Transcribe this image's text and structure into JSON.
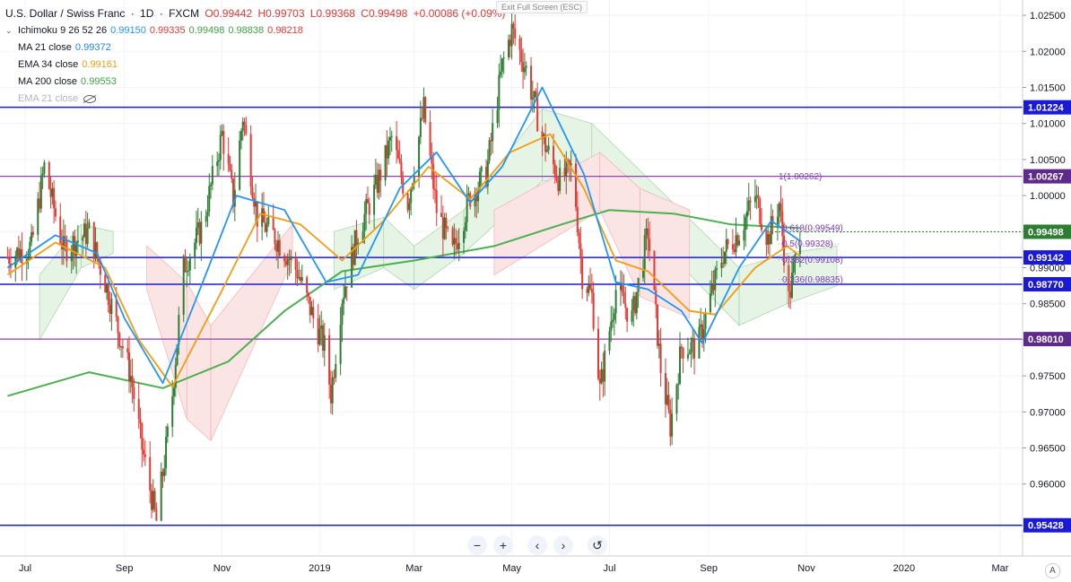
{
  "header": {
    "symbol": "U.S. Dollar / Swiss Franc",
    "sep1": "·",
    "interval": "1D",
    "sep2": "·",
    "source": "FXCM",
    "open": "O0.99442",
    "high": "H0.99703",
    "low": "L0.99368",
    "close": "C0.99498",
    "change": "+0.00086 (+0.09%)"
  },
  "exit_fullscreen_label": "Exit Full Screen (ESC)",
  "indicators": [
    {
      "label": "Ichimoku 9 26 52 26",
      "values": [
        {
          "text": "0.99150",
          "color": "#2196f3"
        },
        {
          "text": "0.99335",
          "color": "#e53935"
        },
        {
          "text": "0.99498",
          "color": "#43a047"
        },
        {
          "text": "0.98838",
          "color": "#43a047"
        },
        {
          "text": "0.98218",
          "color": "#e53935"
        }
      ]
    },
    {
      "label": "MA 21 close",
      "values": [
        {
          "text": "0.99372",
          "color": "#1e88e5"
        }
      ]
    },
    {
      "label": "EMA 34 close",
      "values": [
        {
          "text": "0.99161",
          "color": "#f39c12"
        }
      ]
    },
    {
      "label": "MA 200 close",
      "values": [
        {
          "text": "0.99553",
          "color": "#43a047"
        }
      ]
    },
    {
      "label": "EMA 21 close",
      "values": [],
      "hidden": true
    }
  ],
  "nav_buttons": [
    "−",
    "+",
    "‹",
    "›",
    "↺"
  ],
  "auto_label": "A",
  "colors": {
    "up": "#2e7d32",
    "down": "#e53935",
    "ma21": "#2196f3",
    "ema34": "#f39c12",
    "ma200": "#4caf50",
    "hline_blue": "#1a1ad6",
    "hline_purple": "#8e44ad",
    "cloud_up": "#e6f4e6",
    "cloud_down": "#fbe4e4"
  },
  "chart_data": {
    "type": "candlestick",
    "ylim": [
      0.9535,
      1.0265
    ],
    "y_ticks": [
      "1.02500",
      "1.02000",
      "1.01500",
      "1.01000",
      "1.00500",
      "1.00000",
      "0.99500",
      "0.99000",
      "0.98500",
      "0.98000",
      "0.97500",
      "0.97000",
      "0.96500",
      "0.96000"
    ],
    "x_ticks": [
      {
        "label": "Jul",
        "date": "2018-07-01"
      },
      {
        "label": "Sep",
        "date": "2018-09-01"
      },
      {
        "label": "Nov",
        "date": "2018-11-01"
      },
      {
        "label": "2019",
        "date": "2019-01-01"
      },
      {
        "label": "Mar",
        "date": "2019-03-01"
      },
      {
        "label": "May",
        "date": "2019-05-01"
      },
      {
        "label": "Jul",
        "date": "2019-07-01"
      },
      {
        "label": "Sep",
        "date": "2019-09-01"
      },
      {
        "label": "Nov",
        "date": "2019-11-01"
      },
      {
        "label": "2020",
        "date": "2020-01-01"
      },
      {
        "label": "Mar",
        "date": "2020-03-01"
      }
    ],
    "horizontal_levels": [
      {
        "price": 1.01224,
        "label": "1.01224",
        "style": "blue"
      },
      {
        "price": 1.00267,
        "label": "1.00267",
        "style": "purple"
      },
      {
        "price": 0.99142,
        "label": "0.99142",
        "style": "blue"
      },
      {
        "price": 0.9877,
        "label": "0.98770",
        "style": "blue"
      },
      {
        "price": 0.9801,
        "label": "0.98010",
        "style": "purple"
      },
      {
        "price": 0.95428,
        "label": "0.95428",
        "style": "blue"
      }
    ],
    "current_price": {
      "price": 0.99498,
      "label": "0.99498"
    },
    "fib_labels": [
      {
        "text": "1(1.00262)",
        "price": 1.00262
      },
      {
        "text": "0.618(0.99549)",
        "price": 0.99549
      },
      {
        "text": "0.5(0.99328)",
        "price": 0.99328
      },
      {
        "text": "0.382(0.99108)",
        "price": 0.99108
      },
      {
        "text": "0.236(0.98835)",
        "price": 0.98835
      }
    ],
    "price_path": [
      [
        "2018-06-20",
        0.9915
      ],
      [
        "2018-07-05",
        0.993
      ],
      [
        "2018-07-13",
        1.004
      ],
      [
        "2018-07-25",
        0.9925
      ],
      [
        "2018-08-10",
        0.995
      ],
      [
        "2018-08-20",
        0.988
      ],
      [
        "2018-09-05",
        0.975
      ],
      [
        "2018-09-12",
        0.965
      ],
      [
        "2018-09-21",
        0.9548
      ],
      [
        "2018-09-30",
        0.97
      ],
      [
        "2018-10-08",
        0.99
      ],
      [
        "2018-10-20",
        0.996
      ],
      [
        "2018-11-01",
        1.0085
      ],
      [
        "2018-11-08",
        0.9995
      ],
      [
        "2018-11-14",
        1.011
      ],
      [
        "2018-11-23",
        0.997
      ],
      [
        "2018-12-05",
        0.994
      ],
      [
        "2018-12-18",
        0.9895
      ],
      [
        "2018-12-28",
        0.983
      ],
      [
        "2019-01-04",
        0.979
      ],
      [
        "2019-01-08",
        0.9725
      ],
      [
        "2019-01-15",
        0.986
      ],
      [
        "2019-01-25",
        0.995
      ],
      [
        "2019-02-05",
        1.001
      ],
      [
        "2019-02-15",
        1.008
      ],
      [
        "2019-02-25",
        0.999
      ],
      [
        "2019-03-07",
        1.012
      ],
      [
        "2019-03-15",
        0.998
      ],
      [
        "2019-03-25",
        0.992
      ],
      [
        "2019-04-05",
        1.0
      ],
      [
        "2019-04-15",
        1.003
      ],
      [
        "2019-04-25",
        1.018
      ],
      [
        "2019-05-01",
        1.023
      ],
      [
        "2019-05-10",
        1.0175
      ],
      [
        "2019-05-20",
        1.008
      ],
      [
        "2019-05-31",
        1.002
      ],
      [
        "2019-06-08",
        1.004
      ],
      [
        "2019-06-14",
        0.989
      ],
      [
        "2019-06-20",
        0.986
      ],
      [
        "2019-06-25",
        0.973
      ],
      [
        "2019-07-05",
        0.987
      ],
      [
        "2019-07-15",
        0.983
      ],
      [
        "2019-07-25",
        0.995
      ],
      [
        "2019-08-02",
        0.976
      ],
      [
        "2019-08-08",
        0.968
      ],
      [
        "2019-08-15",
        0.979
      ],
      [
        "2019-08-25",
        0.979
      ],
      [
        "2019-09-01",
        0.985
      ],
      [
        "2019-09-10",
        0.992
      ],
      [
        "2019-09-20",
        0.995
      ],
      [
        "2019-09-30",
        1.0
      ],
      [
        "2019-10-08",
        0.994
      ],
      [
        "2019-10-15",
        0.999
      ],
      [
        "2019-10-21",
        0.9855
      ],
      [
        "2019-10-28",
        0.995
      ]
    ],
    "ma21_path": [
      [
        "2018-06-20",
        0.99
      ],
      [
        "2018-07-20",
        0.9945
      ],
      [
        "2018-08-15",
        0.992
      ],
      [
        "2018-09-01",
        0.983
      ],
      [
        "2018-09-25",
        0.974
      ],
      [
        "2018-10-20",
        0.988
      ],
      [
        "2018-11-10",
        1.0
      ],
      [
        "2018-12-10",
        0.998
      ],
      [
        "2019-01-05",
        0.988
      ],
      [
        "2019-01-25",
        0.989
      ],
      [
        "2019-02-20",
        1.001
      ],
      [
        "2019-03-15",
        1.006
      ],
      [
        "2019-04-05",
        0.999
      ],
      [
        "2019-04-25",
        1.004
      ],
      [
        "2019-05-20",
        1.015
      ],
      [
        "2019-06-15",
        1.003
      ],
      [
        "2019-07-05",
        0.988
      ],
      [
        "2019-07-25",
        0.987
      ],
      [
        "2019-08-15",
        0.984
      ],
      [
        "2019-08-28",
        0.9795
      ],
      [
        "2019-09-20",
        0.99
      ],
      [
        "2019-10-10",
        0.9965
      ],
      [
        "2019-10-28",
        0.9937
      ]
    ],
    "ema34_path": [
      [
        "2018-06-20",
        0.989
      ],
      [
        "2018-07-20",
        0.9935
      ],
      [
        "2018-08-20",
        0.99
      ],
      [
        "2018-09-10",
        0.98
      ],
      [
        "2018-10-01",
        0.9735
      ],
      [
        "2018-10-30",
        0.986
      ],
      [
        "2018-11-25",
        0.9975
      ],
      [
        "2018-12-20",
        0.996
      ],
      [
        "2019-01-15",
        0.991
      ],
      [
        "2019-02-10",
        0.9965
      ],
      [
        "2019-03-10",
        1.004
      ],
      [
        "2019-04-05",
        0.9995
      ],
      [
        "2019-04-30",
        1.006
      ],
      [
        "2019-05-25",
        1.0085
      ],
      [
        "2019-06-15",
        1.001
      ],
      [
        "2019-07-05",
        0.991
      ],
      [
        "2019-07-25",
        0.9895
      ],
      [
        "2019-08-20",
        0.984
      ],
      [
        "2019-09-05",
        0.9835
      ],
      [
        "2019-09-30",
        0.99
      ],
      [
        "2019-10-20",
        0.993
      ],
      [
        "2019-10-28",
        0.9916
      ]
    ],
    "ma200_path": [
      [
        "2018-06-20",
        0.9722
      ],
      [
        "2018-08-10",
        0.9755
      ],
      [
        "2018-09-25",
        0.9733
      ],
      [
        "2018-11-05",
        0.977
      ],
      [
        "2018-12-10",
        0.984
      ],
      [
        "2019-01-15",
        0.9895
      ],
      [
        "2019-03-01",
        0.991
      ],
      [
        "2019-04-20",
        0.993
      ],
      [
        "2019-06-01",
        0.996
      ],
      [
        "2019-07-01",
        0.998
      ],
      [
        "2019-08-10",
        0.9975
      ],
      [
        "2019-09-15",
        0.996
      ],
      [
        "2019-10-28",
        0.9955
      ]
    ],
    "cloud_green": [
      [
        "2018-07-10",
        0.989,
        0.98
      ],
      [
        "2018-08-05",
        0.996,
        0.99
      ],
      [
        "2018-08-25",
        0.995,
        0.992
      ],
      [
        "2019-01-10",
        0.995,
        0.987
      ],
      [
        "2019-02-10",
        0.997,
        0.99
      ],
      [
        "2019-03-01",
        0.993,
        0.987
      ],
      [
        "2019-04-01",
        0.998,
        0.992
      ],
      [
        "2019-05-20",
        1.012,
        1.002
      ],
      [
        "2019-06-20",
        1.01,
        1.003
      ],
      [
        "2019-09-20",
        0.99,
        0.982
      ],
      [
        "2019-10-20",
        0.992,
        0.985
      ],
      [
        "2019-11-20",
        0.993,
        0.9875
      ]
    ],
    "cloud_red": [
      [
        "2018-09-15",
        0.993,
        0.987
      ],
      [
        "2018-10-10",
        0.988,
        0.969
      ],
      [
        "2018-10-25",
        0.982,
        0.966
      ],
      [
        "2018-12-15",
        0.996,
        0.991
      ],
      [
        "2019-04-20",
        0.998,
        0.989
      ],
      [
        "2019-06-25",
        1.006,
        0.998
      ],
      [
        "2019-07-20",
        1.001,
        0.986
      ],
      [
        "2019-08-20",
        0.998,
        0.983
      ]
    ]
  }
}
